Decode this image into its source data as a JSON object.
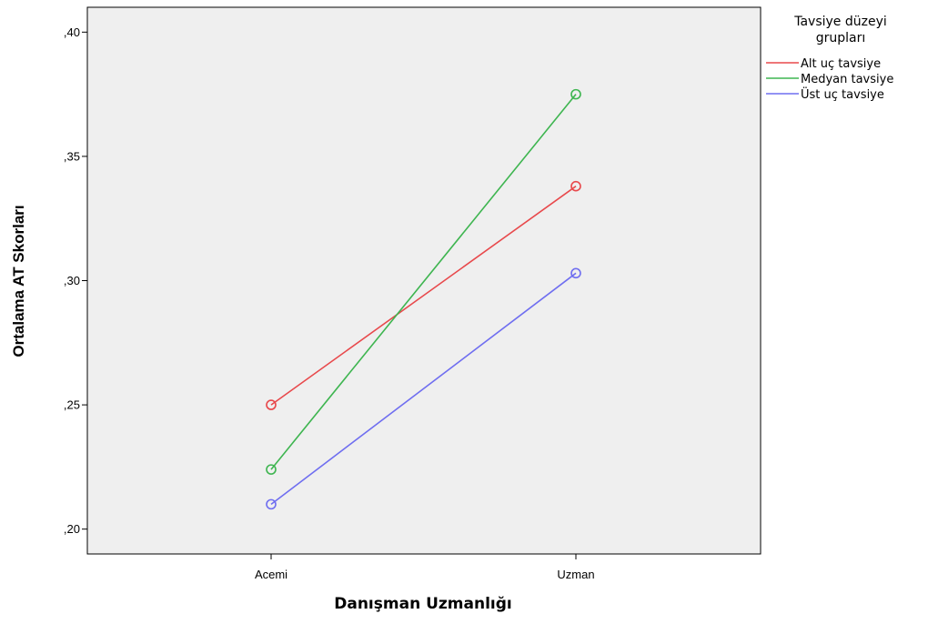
{
  "chart_data": {
    "type": "line",
    "xlabel": "Danışman Uzmanlığı",
    "ylabel": "Ortalama AT Skorları",
    "categories": [
      "Acemi",
      "Uzman"
    ],
    "ylim": [
      0.19,
      0.41
    ],
    "yticks": [
      0.2,
      0.25,
      0.3,
      0.35,
      0.4
    ],
    "ytick_labels": [
      ",20",
      ",25",
      ",30",
      ",35",
      ",40"
    ],
    "grid": false,
    "plot_background": "#efefef",
    "markers": "open-circle",
    "legend": {
      "position": "right",
      "title_lines": [
        "Tavsiye düzeyi",
        "grupları"
      ]
    },
    "series": [
      {
        "name": "Alt uç tavsiye",
        "color": "#e8494c",
        "values": [
          0.25,
          0.338
        ]
      },
      {
        "name": "Medyan tavsiye",
        "color": "#3eb550",
        "values": [
          0.224,
          0.375
        ]
      },
      {
        "name": "Üst uç tavsiye",
        "color": "#6f6ef0",
        "values": [
          0.21,
          0.303
        ]
      }
    ]
  }
}
